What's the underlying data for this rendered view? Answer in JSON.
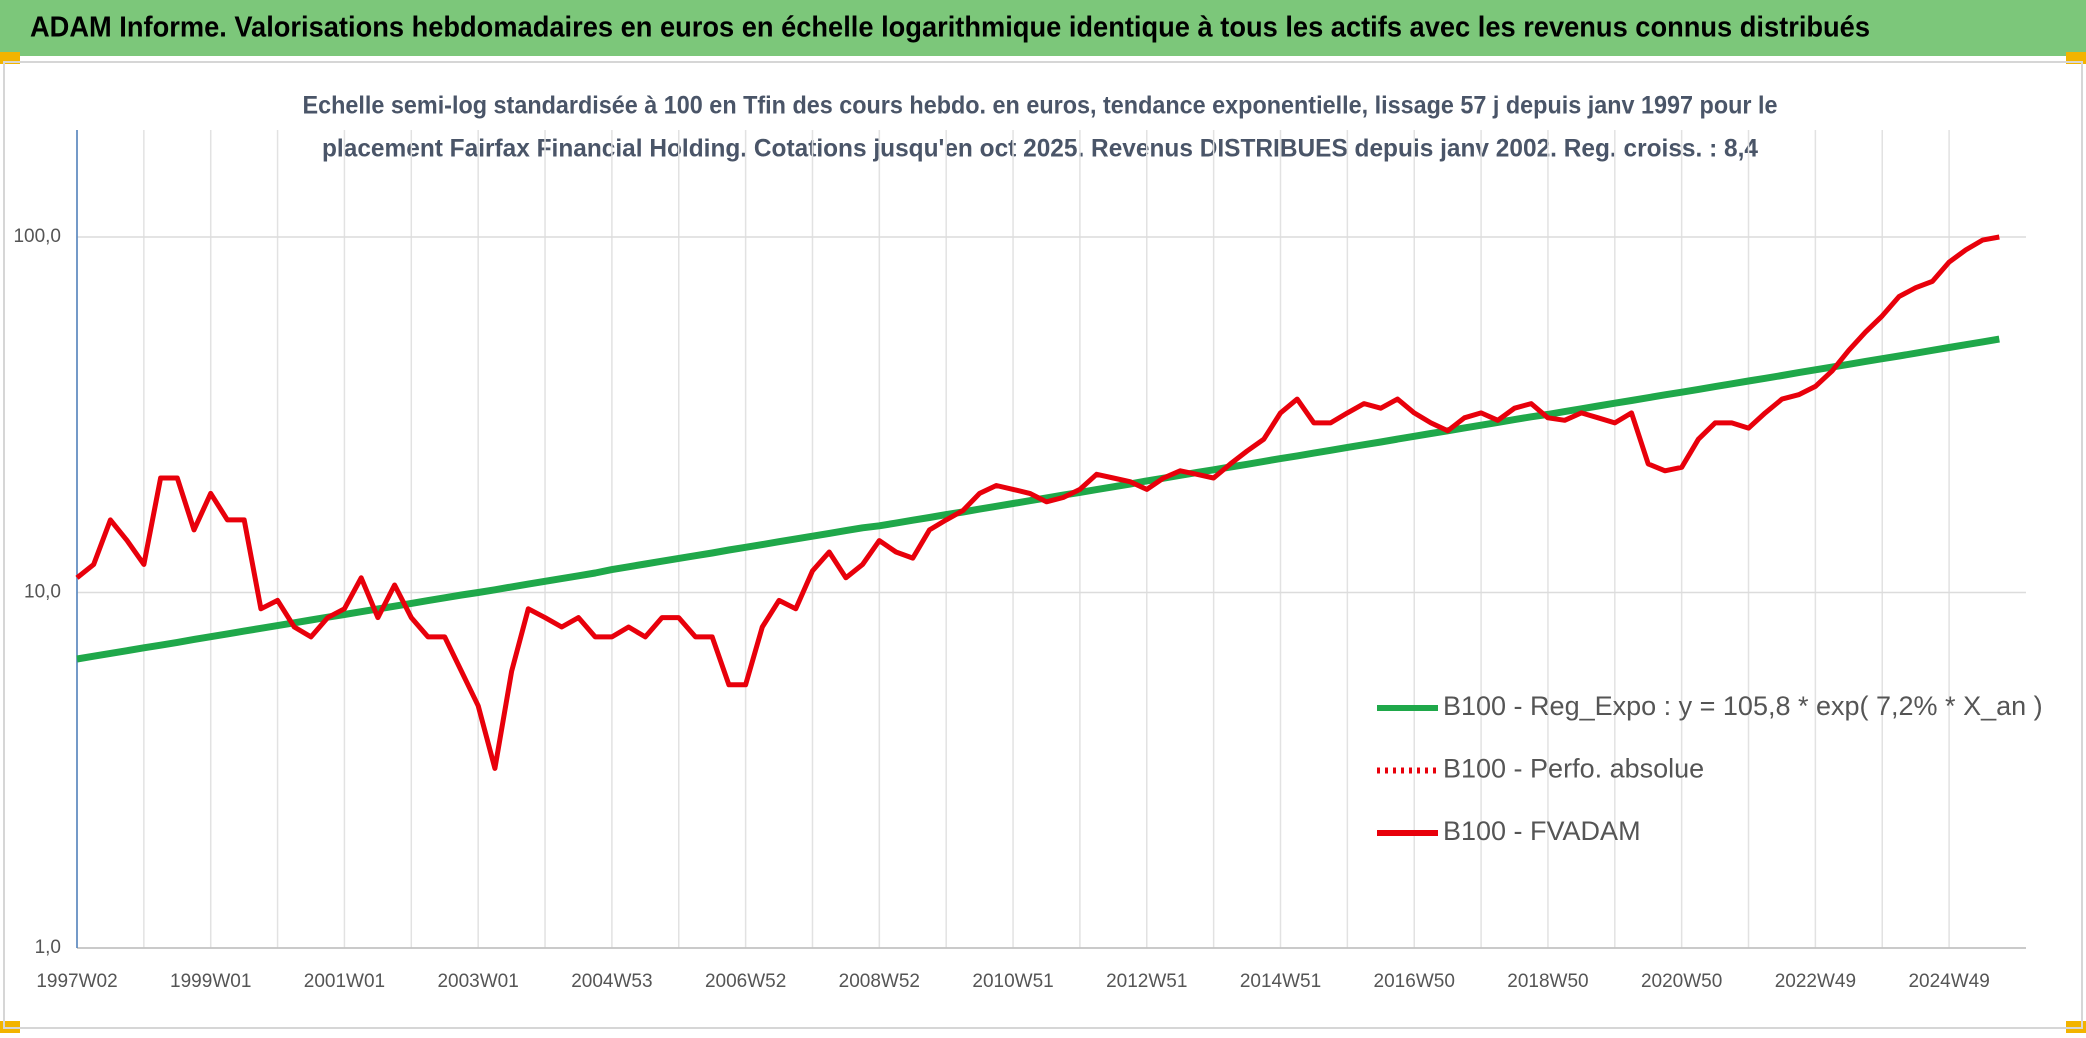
{
  "chart_data": {
    "type": "line",
    "header": "ADAM Informe. Valorisations hebdomadaires en euros en échelle logarithmique identique à tous les actifs avec les revenus connus distribués",
    "title": [
      "Echelle semi-log standardisée à 100 en Tfin des cours hebdo. en euros, tendance exponentielle, lissage 57 j depuis janv 1997 pour le",
      "placement Fairfax Financial Holding. Cotations jusqu'en oct 2025. Revenus DISTRIBUES depuis janv 2002. Reg. croiss. : 8,4"
    ],
    "log_scale": true,
    "grid": true,
    "ylim": [
      1,
      200
    ],
    "yticks": [
      {
        "value": 1,
        "label": "1,0"
      },
      {
        "value": 10,
        "label": "10,0"
      },
      {
        "value": 100,
        "label": "100,0"
      }
    ],
    "categories": [
      "1997W02",
      null,
      null,
      null,
      null,
      null,
      null,
      null,
      "1999W01",
      null,
      null,
      null,
      null,
      null,
      null,
      null,
      "2001W01",
      null,
      null,
      null,
      null,
      null,
      null,
      null,
      "2003W01",
      null,
      null,
      null,
      null,
      null,
      null,
      null,
      "2004W53",
      null,
      null,
      null,
      null,
      null,
      null,
      null,
      "2006W52",
      null,
      null,
      null,
      null,
      null,
      null,
      null,
      "2008W52",
      null,
      null,
      null,
      null,
      null,
      null,
      null,
      "2010W51",
      null,
      null,
      null,
      null,
      null,
      null,
      null,
      "2012W51",
      null,
      null,
      null,
      null,
      null,
      null,
      null,
      "2014W51",
      null,
      null,
      null,
      null,
      null,
      null,
      null,
      "2016W50",
      null,
      null,
      null,
      null,
      null,
      null,
      null,
      "2018W50",
      null,
      null,
      null,
      null,
      null,
      null,
      null,
      "2020W50",
      null,
      null,
      null,
      null,
      null,
      null,
      null,
      "2022W49",
      null,
      null,
      null,
      null,
      null,
      null,
      null,
      "2024W49",
      null,
      null,
      null
    ],
    "series": [
      {
        "name": "B100 - Reg_Expo : y = 105,8 * exp( 7,2% *  X_an )",
        "color": "#1fa84a",
        "dash": "solid",
        "values": [
          6.5,
          6.62,
          6.74,
          6.86,
          6.99,
          7.11,
          7.24,
          7.38,
          7.51,
          7.65,
          7.79,
          7.93,
          8.07,
          8.22,
          8.37,
          8.52,
          8.67,
          8.83,
          8.99,
          9.15,
          9.32,
          9.49,
          9.66,
          9.84,
          10.0,
          10.18,
          10.37,
          10.56,
          10.75,
          10.94,
          11.14,
          11.35,
          11.6,
          11.81,
          12.03,
          12.25,
          12.47,
          12.69,
          12.92,
          13.17,
          13.4,
          13.64,
          13.9,
          14.15,
          14.4,
          14.66,
          14.93,
          15.21,
          15.4,
          15.68,
          15.97,
          16.26,
          16.56,
          16.85,
          17.16,
          17.48,
          17.8,
          18.12,
          18.45,
          18.79,
          19.13,
          19.47,
          19.83,
          20.2,
          20.6,
          20.97,
          21.36,
          21.75,
          22.14,
          22.54,
          22.95,
          23.38,
          23.8,
          24.23,
          24.67,
          25.12,
          25.59,
          26.04,
          26.51,
          27.01,
          27.5,
          28.0,
          28.51,
          29.04,
          29.56,
          30.09,
          30.64,
          31.21,
          31.7,
          32.27,
          32.86,
          33.47,
          34.08,
          34.68,
          35.31,
          35.98,
          36.6,
          37.26,
          37.94,
          38.65,
          39.35,
          40.04,
          40.77,
          41.54,
          42.3,
          43.06,
          43.85,
          44.67,
          45.47,
          46.28,
          47.12,
          48.01,
          48.9,
          49.78,
          50.69,
          51.62
        ]
      },
      {
        "name": "B100 - Perfo. absolue",
        "color": "#e8000b",
        "dash": "dotted"
      },
      {
        "name": "B100 - FVADAM",
        "color": "#e8000b",
        "dash": "solid",
        "values": [
          11,
          12,
          16,
          14,
          12,
          21,
          21,
          15,
          19,
          16,
          16,
          9,
          9.5,
          8,
          7.5,
          8.5,
          9,
          11,
          8.5,
          10.5,
          8.5,
          7.5,
          7.5,
          6,
          4.8,
          3.2,
          6,
          9,
          8.5,
          8,
          8.5,
          7.5,
          7.5,
          8,
          7.5,
          8.5,
          8.5,
          7.5,
          7.5,
          5.5,
          5.5,
          8,
          9.5,
          9,
          11.5,
          13,
          11,
          12,
          14,
          13,
          12.5,
          15,
          16,
          17,
          19,
          20,
          19.5,
          19,
          18,
          18.5,
          19.5,
          21.5,
          21,
          20.5,
          19.5,
          21,
          22,
          21.5,
          21,
          23,
          25,
          27,
          32,
          35,
          30,
          30,
          32,
          34,
          33,
          35,
          32,
          30,
          28.5,
          31,
          32,
          30.5,
          33,
          34,
          31,
          30.5,
          32,
          31,
          30,
          32,
          23,
          22,
          22.5,
          27,
          30,
          30,
          29,
          32,
          35,
          36,
          38,
          42,
          48,
          54,
          60,
          68,
          72,
          75,
          85,
          92,
          98,
          100
        ]
      }
    ]
  }
}
